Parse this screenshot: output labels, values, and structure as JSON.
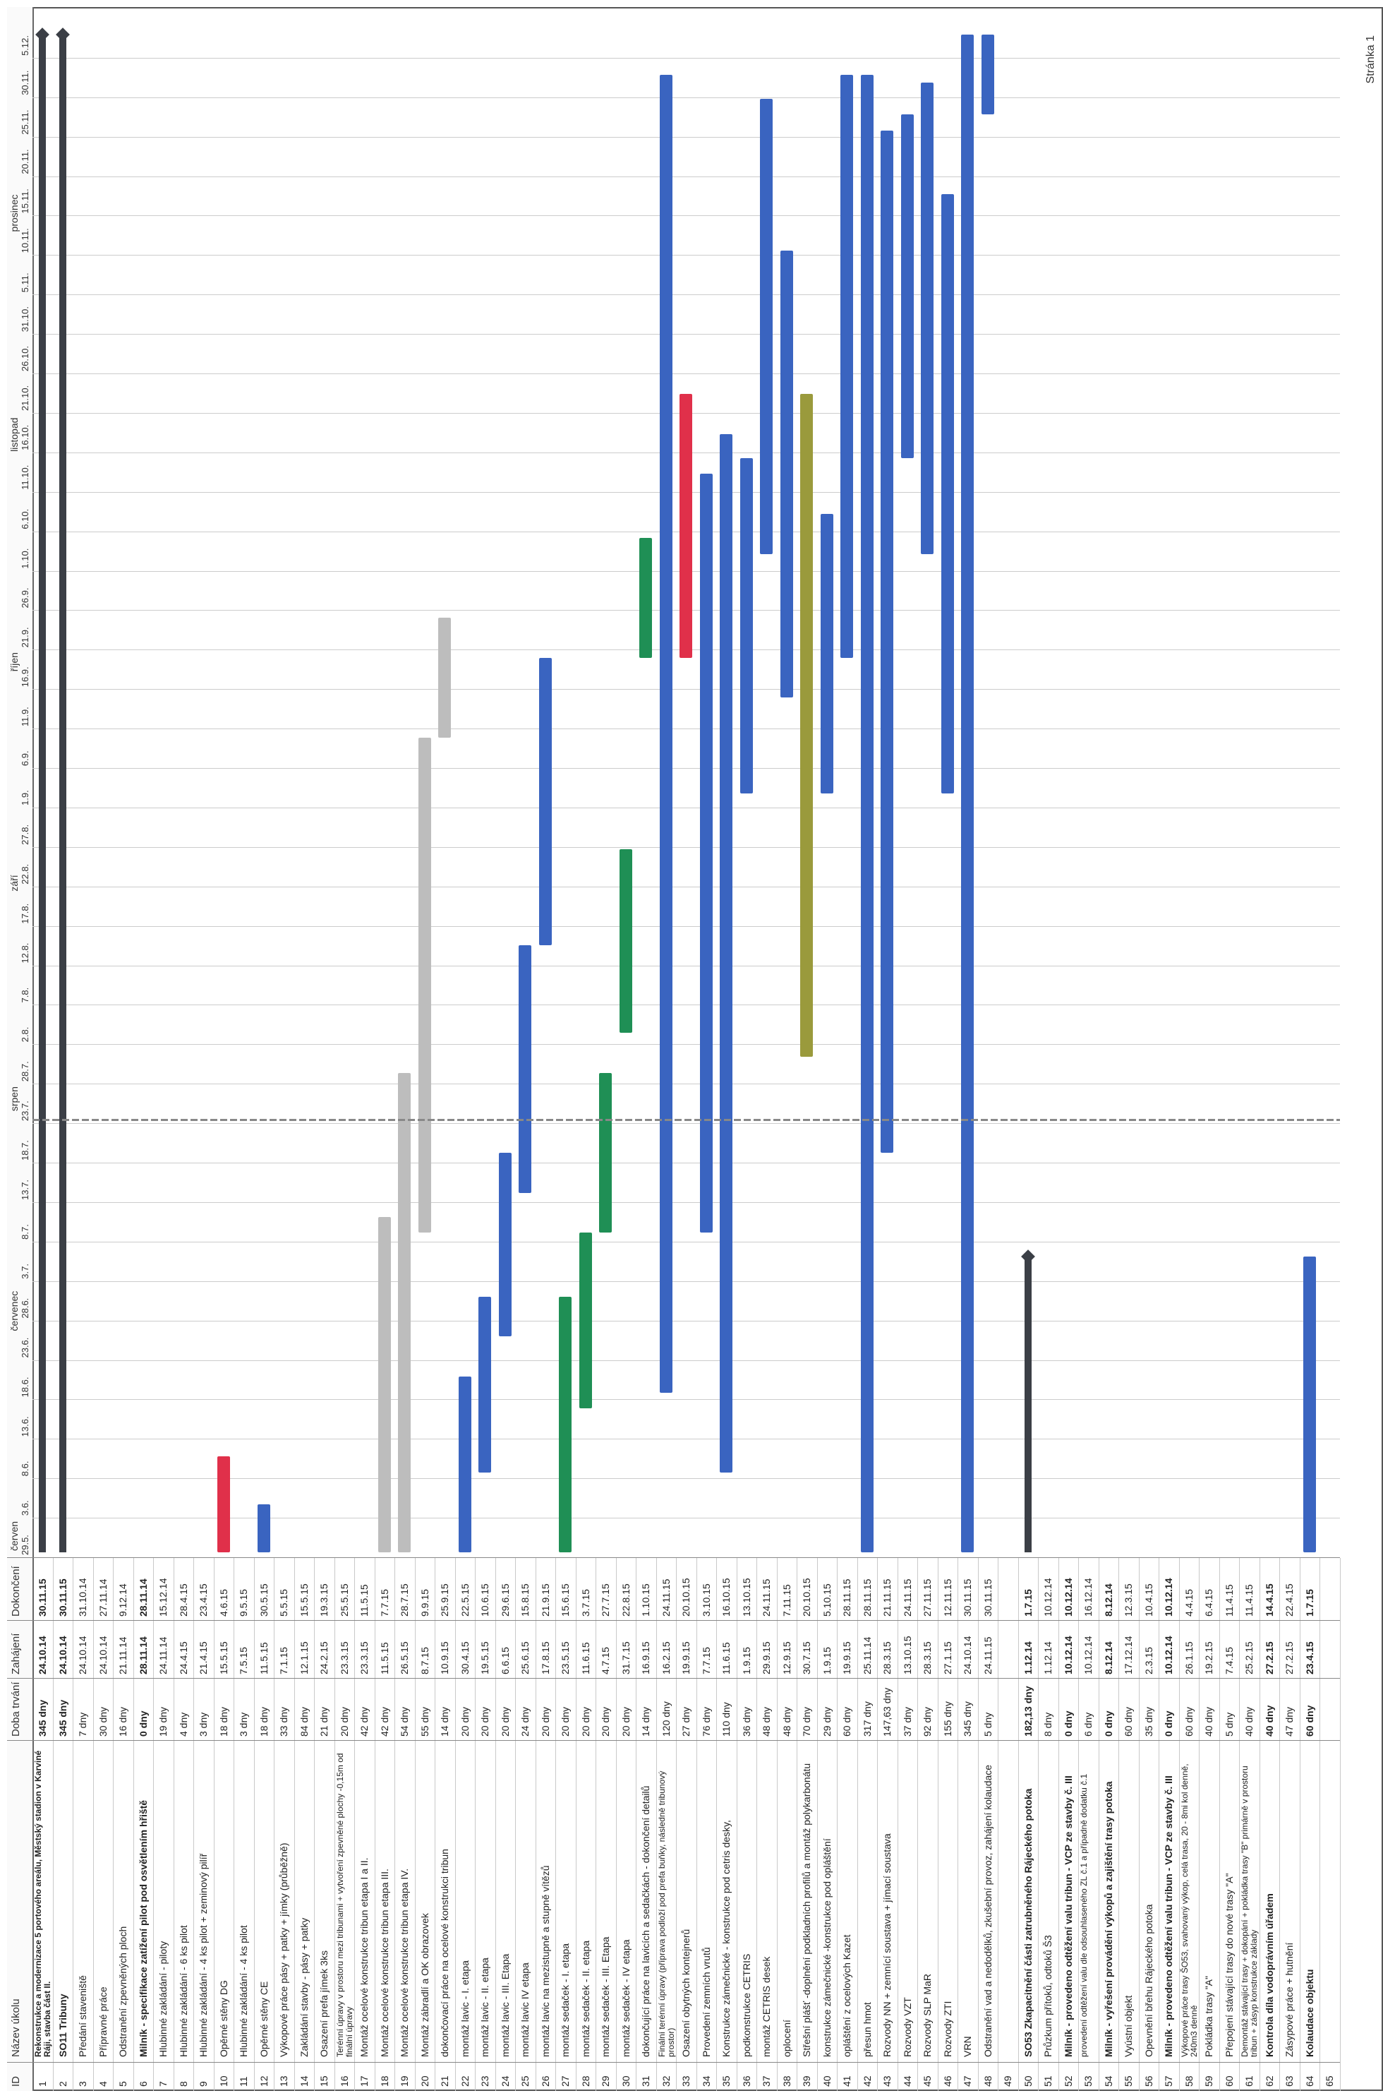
{
  "headers": {
    "id": "ID",
    "name": "Název úkolu",
    "duration": "Doba trvání",
    "start": "Zahájení",
    "finish": "Dokončení"
  },
  "months": [
    "červen",
    "červenec",
    "srpen",
    "září",
    "říjen",
    "listopad",
    "prosinec"
  ],
  "day_ticks": [
    "29.5.",
    "3.6.",
    "8.6.",
    "13.6.",
    "18.6.",
    "23.6.",
    "28.6.",
    "3.7.",
    "8.7.",
    "13.7.",
    "18.7.",
    "23.7.",
    "28.7.",
    "2.8.",
    "7.8.",
    "12.8.",
    "17.8.",
    "22.8.",
    "27.8.",
    "1.9.",
    "6.9.",
    "11.9.",
    "16.9.",
    "21.9.",
    "26.9.",
    "1.10.",
    "6.10.",
    "11.10.",
    "16.10.",
    "21.10.",
    "26.10.",
    "31.10.",
    "5.11.",
    "10.11.",
    "15.11.",
    "20.11.",
    "25.11.",
    "30.11.",
    "5.12."
  ],
  "tasks": [
    {
      "id": "1",
      "name": "Rekonstrukce a modernizace 5 portového areálu, Městský stadion v Karviné Ráji, stavba část II.",
      "duration": "345 dny",
      "start": "24.10.14",
      "finish": "30.11.15",
      "bold": true,
      "wrap": true
    },
    {
      "id": "2",
      "name": "SO11 Tribuny",
      "duration": "345 dny",
      "start": "24.10.14",
      "finish": "30.11.15",
      "bold": true
    },
    {
      "id": "3",
      "name": "Předání staveniště",
      "duration": "7 dny",
      "start": "24.10.14",
      "finish": "31.10.14"
    },
    {
      "id": "4",
      "name": "Přípravné práce",
      "duration": "30 dny",
      "start": "24.10.14",
      "finish": "27.11.14"
    },
    {
      "id": "5",
      "name": "Odstranění zpevněných ploch",
      "duration": "16 dny",
      "start": "21.11.14",
      "finish": "9.12.14"
    },
    {
      "id": "6",
      "name": "Milník - specifikace zatížení pilot pod osvětlením hřiště",
      "duration": "0 dny",
      "start": "28.11.14",
      "finish": "28.11.14",
      "bold": true
    },
    {
      "id": "7",
      "name": "Hlubinné zakládání - piloty",
      "duration": "19 dny",
      "start": "24.11.14",
      "finish": "15.12.14"
    },
    {
      "id": "8",
      "name": "Hlubinné zakládání - 6 ks pilot",
      "duration": "4 dny",
      "start": "24.4.15",
      "finish": "28.4.15"
    },
    {
      "id": "9",
      "name": "Hlubinné zakládání - 4 ks pilot + zeminový pilíř",
      "duration": "3 dny",
      "start": "21.4.15",
      "finish": "23.4.15"
    },
    {
      "id": "10",
      "name": "Opěrné stěny DG",
      "duration": "18 dny",
      "start": "15.5.15",
      "finish": "4.6.15"
    },
    {
      "id": "11",
      "name": "Hlubinné zakládání - 4 ks pilot",
      "duration": "3 dny",
      "start": "7.5.15",
      "finish": "9.5.15"
    },
    {
      "id": "12",
      "name": "Opěrné stěny CE",
      "duration": "18 dny",
      "start": "11.5.15",
      "finish": "30.5.15"
    },
    {
      "id": "13",
      "name": "Výkopové práce pásy + patky + jímky (průběžně)",
      "duration": "33 dny",
      "start": "7.1.15",
      "finish": "5.5.15"
    },
    {
      "id": "14",
      "name": "Zakládání stavby - pásy + patky",
      "duration": "84 dny",
      "start": "12.1.15",
      "finish": "15.5.15"
    },
    {
      "id": "15",
      "name": "Osazení prefa jímek 3ks",
      "duration": "21 dny",
      "start": "24.2.15",
      "finish": "19.3.15"
    },
    {
      "id": "16",
      "name": "Terénní úpravy v prostoru mezi tribunami + vytvoření zpevněné plochy -0,15m od finální úpravy",
      "duration": "20 dny",
      "start": "23.3.15",
      "finish": "25.5.15",
      "wrap": true
    },
    {
      "id": "17",
      "name": "Montáž ocelové konstrukce tribun etapa I a II.",
      "duration": "42 dny",
      "start": "23.3.15",
      "finish": "11.5.15"
    },
    {
      "id": "18",
      "name": "Montáž ocelové konstrukce tribun etapa III.",
      "duration": "42 dny",
      "start": "11.5.15",
      "finish": "7.7.15"
    },
    {
      "id": "19",
      "name": "Montáž ocelové konstrukce tribun etapa IV.",
      "duration": "54 dny",
      "start": "26.5.15",
      "finish": "28.7.15"
    },
    {
      "id": "20",
      "name": "Montáž zábradlí a OK obrazovek",
      "duration": "55 dny",
      "start": "8.7.15",
      "finish": "9.9.15"
    },
    {
      "id": "21",
      "name": "dokončovací práce na ocelové konstrukci tribun",
      "duration": "14 dny",
      "start": "10.9.15",
      "finish": "25.9.15"
    },
    {
      "id": "22",
      "name": "montáž lavic - I. etapa",
      "duration": "20 dny",
      "start": "30.4.15",
      "finish": "22.5.15"
    },
    {
      "id": "23",
      "name": "montáž lavic - II. etapa",
      "duration": "20 dny",
      "start": "19.5.15",
      "finish": "10.6.15"
    },
    {
      "id": "24",
      "name": "montáž lavic - III. Etapa",
      "duration": "20 dny",
      "start": "6.6.15",
      "finish": "29.6.15"
    },
    {
      "id": "25",
      "name": "montáž lavic IV etapa",
      "duration": "24 dny",
      "start": "25.6.15",
      "finish": "15.8.15"
    },
    {
      "id": "26",
      "name": "montáž lavic na mezistupně a stupně vítězů",
      "duration": "20 dny",
      "start": "17.8.15",
      "finish": "21.9.15"
    },
    {
      "id": "27",
      "name": "montáž sedaček - I. etapa",
      "duration": "20 dny",
      "start": "23.5.15",
      "finish": "15.6.15"
    },
    {
      "id": "28",
      "name": "montáž sedaček - II. etapa",
      "duration": "20 dny",
      "start": "11.6.15",
      "finish": "3.7.15"
    },
    {
      "id": "29",
      "name": "montáž sedaček - III. Etapa",
      "duration": "20 dny",
      "start": "4.7.15",
      "finish": "27.7.15"
    },
    {
      "id": "30",
      "name": "montáž sedaček - IV etapa",
      "duration": "20 dny",
      "start": "31.7.15",
      "finish": "22.8.15"
    },
    {
      "id": "31",
      "name": "dokončující práce na lavicích a sedačkách - dokončení detailů",
      "duration": "14 dny",
      "start": "16.9.15",
      "finish": "1.10.15"
    },
    {
      "id": "32",
      "name": "Finální terénní úpravy (příprava podloží pod prefa buňky, následně tribunový prostor)",
      "duration": "120 dny",
      "start": "16.2.15",
      "finish": "24.11.15",
      "wrap": true
    },
    {
      "id": "33",
      "name": "Osazení obytných kontejnerů",
      "duration": "27 dny",
      "start": "19.9.15",
      "finish": "20.10.15"
    },
    {
      "id": "34",
      "name": "Provedení zemních vrutů",
      "duration": "76 dny",
      "start": "7.7.15",
      "finish": "3.10.15"
    },
    {
      "id": "35",
      "name": "Konstrukce zámečnické - konstrukce pod cetris desky,",
      "duration": "110 dny",
      "start": "11.6.15",
      "finish": "16.10.15"
    },
    {
      "id": "36",
      "name": "podkonstrukce CETRIS",
      "duration": "36 dny",
      "start": "1.9.15",
      "finish": "13.10.15"
    },
    {
      "id": "37",
      "name": "montáž CETRIS desek",
      "duration": "48 dny",
      "start": "29.9.15",
      "finish": "24.11.15"
    },
    {
      "id": "38",
      "name": "oplocení",
      "duration": "48 dny",
      "start": "12.9.15",
      "finish": "7.11.15"
    },
    {
      "id": "39",
      "name": "Střešní plášť -doplnění podkladních profilů a montáž polykarbonátu",
      "duration": "70 dny",
      "start": "30.7.15",
      "finish": "20.10.15"
    },
    {
      "id": "40",
      "name": "konstrukce zámečnické -konstrukce pod opláštění",
      "duration": "29 dny",
      "start": "1.9.15",
      "finish": "5.10.15"
    },
    {
      "id": "41",
      "name": "opláštění z ocelových Kazet",
      "duration": "60 dny",
      "start": "19.9.15",
      "finish": "28.11.15"
    },
    {
      "id": "42",
      "name": "přesun hmot",
      "duration": "317 dny",
      "start": "25.11.14",
      "finish": "28.11.15"
    },
    {
      "id": "43",
      "name": "Rozvody NN + zemnící soustava + jímací soustava",
      "duration": "147,63 dny",
      "start": "28.3.15",
      "finish": "21.11.15"
    },
    {
      "id": "44",
      "name": "Rozvody VZT",
      "duration": "37 dny",
      "start": "13.10.15",
      "finish": "24.11.15"
    },
    {
      "id": "45",
      "name": "Rozvody SLP MaR",
      "duration": "92 dny",
      "start": "28.3.15",
      "finish": "27.11.15"
    },
    {
      "id": "46",
      "name": "Rozvody ZTI",
      "duration": "155 dny",
      "start": "27.1.15",
      "finish": "12.11.15"
    },
    {
      "id": "47",
      "name": "VRN",
      "duration": "345 dny",
      "start": "24.10.14",
      "finish": "30.11.15"
    },
    {
      "id": "48",
      "name": "Odstranění vad a nedodělků, zkušební provoz, zahájení kolaudace",
      "duration": "5 dny",
      "start": "24.11.15",
      "finish": "30.11.15"
    },
    {
      "id": "49",
      "name": "",
      "duration": "",
      "start": "",
      "finish": ""
    },
    {
      "id": "50",
      "name": "SO53 Zkapacitnění části zatrubněného Rájeckého potoka",
      "duration": "182,13 dny",
      "start": "1.12.14",
      "finish": "1.7.15",
      "bold": true
    },
    {
      "id": "51",
      "name": "Průzkum přítoků, odtoků Š3",
      "duration": "8 dny",
      "start": "1.12.14",
      "finish": "10.12.14"
    },
    {
      "id": "52",
      "name": "Milník - provedeno odtěžení valu tribun - VCP ze stavby č. III",
      "duration": "0 dny",
      "start": "10.12.14",
      "finish": "10.12.14",
      "bold": true
    },
    {
      "id": "53",
      "name": "provedení odtěžení valu dle odsouhlaseného ZL č.1 a případně dodatku č.1",
      "duration": "6 dny",
      "start": "10.12.14",
      "finish": "16.12.14",
      "wrap": true
    },
    {
      "id": "54",
      "name": "Milník - vyřešení provádění výkopů a zajištění trasy potoka",
      "duration": "0 dny",
      "start": "8.12.14",
      "finish": "8.12.14",
      "bold": true
    },
    {
      "id": "55",
      "name": "Vyústní objekt",
      "duration": "60 dny",
      "start": "17.12.14",
      "finish": "12.3.15"
    },
    {
      "id": "56",
      "name": "Opevnění břehu Rájeckého potoka",
      "duration": "35 dny",
      "start": "2.3.15",
      "finish": "10.4.15"
    },
    {
      "id": "57",
      "name": "Milník - provedeno odtěžení valu tribun - VCP ze stavby č. III",
      "duration": "0 dny",
      "start": "10.12.14",
      "finish": "10.12.14",
      "bold": true
    },
    {
      "id": "58",
      "name": "Výkopové práce trasy ŠO53, svahovaný výkop, celá trasa, 20 - 8mi kol denně, 240m3 denně",
      "duration": "60 dny",
      "start": "26.1.15",
      "finish": "4.4.15",
      "wrap": true
    },
    {
      "id": "59",
      "name": "Pokládka trasy \"A\"",
      "duration": "40 dny",
      "start": "19.2.15",
      "finish": "6.4.15"
    },
    {
      "id": "60",
      "name": "Přepojení stávající trasy do nové trasy \"A\"",
      "duration": "5 dny",
      "start": "7.4.15",
      "finish": "11.4.15"
    },
    {
      "id": "61",
      "name": "Demontáž stávající trasy + dokopání + pokládka trasy \"B\" primárně v prostoru tribun + zásyp konstrukce základy",
      "duration": "40 dny",
      "start": "25.2.15",
      "finish": "11.4.15",
      "wrap": true
    },
    {
      "id": "62",
      "name": "Kontrola díla vodoprávním úřadem",
      "duration": "40 dny",
      "start": "27.2.15",
      "finish": "14.4.15",
      "bold": true
    },
    {
      "id": "63",
      "name": "Zásypové práce + hutnění",
      "duration": "47 dny",
      "start": "27.2.15",
      "finish": "22.4.15"
    },
    {
      "id": "64",
      "name": "Kolaudace objektu",
      "duration": "60 dny",
      "start": "23.4.15",
      "finish": "1.7.15",
      "bold": true
    },
    {
      "id": "65",
      "name": "",
      "duration": "",
      "start": "",
      "finish": ""
    }
  ],
  "bars": [
    {
      "row": 0,
      "type": "summary",
      "s": 0,
      "e": 1000
    },
    {
      "row": 1,
      "type": "summary",
      "s": 0,
      "e": 1000
    },
    {
      "row": 9,
      "color": "#e0304a",
      "s": 0,
      "e": 12
    },
    {
      "row": 11,
      "color": "#3a64c0",
      "s": 0,
      "e": 6
    },
    {
      "row": 17,
      "color": "#bdbdbd",
      "s": 0,
      "e": 42
    },
    {
      "row": 18,
      "color": "#bdbdbd",
      "s": 0,
      "e": 60
    },
    {
      "row": 19,
      "color": "#bdbdbd",
      "s": 40,
      "e": 102
    },
    {
      "row": 20,
      "color": "#bdbdbd",
      "s": 102,
      "e": 117
    },
    {
      "row": 21,
      "color": "#3a64c0",
      "s": 0,
      "e": 22
    },
    {
      "row": 22,
      "color": "#3a64c0",
      "s": 10,
      "e": 32
    },
    {
      "row": 23,
      "color": "#3a64c0",
      "s": 27,
      "e": 50
    },
    {
      "row": 24,
      "color": "#3a64c0",
      "s": 45,
      "e": 76
    },
    {
      "row": 25,
      "color": "#3a64c0",
      "s": 76,
      "e": 112
    },
    {
      "row": 26,
      "color": "#1f8f55",
      "s": 0,
      "e": 32
    },
    {
      "row": 27,
      "color": "#1f8f55",
      "s": 18,
      "e": 40
    },
    {
      "row": 28,
      "color": "#1f8f55",
      "s": 40,
      "e": 60
    },
    {
      "row": 29,
      "color": "#1f8f55",
      "s": 65,
      "e": 88
    },
    {
      "row": 30,
      "color": "#1f8f55",
      "s": 112,
      "e": 127
    },
    {
      "row": 31,
      "color": "#3a64c0",
      "s": 20,
      "e": 185
    },
    {
      "row": 32,
      "color": "#e0304a",
      "s": 112,
      "e": 145
    },
    {
      "row": 33,
      "color": "#3a64c0",
      "s": 40,
      "e": 135
    },
    {
      "row": 34,
      "color": "#3a64c0",
      "s": 10,
      "e": 140
    },
    {
      "row": 35,
      "color": "#3a64c0",
      "s": 95,
      "e": 137
    },
    {
      "row": 36,
      "color": "#3a64c0",
      "s": 125,
      "e": 182
    },
    {
      "row": 37,
      "color": "#3a64c0",
      "s": 107,
      "e": 163
    },
    {
      "row": 38,
      "color": "#9a9a3c",
      "s": 62,
      "e": 145
    },
    {
      "row": 39,
      "color": "#3a64c0",
      "s": 95,
      "e": 130
    },
    {
      "row": 40,
      "color": "#3a64c0",
      "s": 112,
      "e": 185
    },
    {
      "row": 41,
      "color": "#3a64c0",
      "s": 0,
      "e": 185
    },
    {
      "row": 42,
      "color": "#3a64c0",
      "s": 50,
      "e": 178
    },
    {
      "row": 43,
      "color": "#3a64c0",
      "s": 137,
      "e": 180
    },
    {
      "row": 44,
      "color": "#3a64c0",
      "s": 125,
      "e": 184
    },
    {
      "row": 45,
      "color": "#3a64c0",
      "s": 95,
      "e": 170
    },
    {
      "row": 46,
      "color": "#3a64c0",
      "s": 0,
      "e": 190
    },
    {
      "row": 47,
      "color": "#3a64c0",
      "s": 180,
      "e": 190
    },
    {
      "row": 49,
      "type": "summary",
      "s": 0,
      "e": 37
    },
    {
      "row": 63,
      "color": "#3a64c0",
      "s": 0,
      "e": 37
    }
  ],
  "footer": "Stránka 1"
}
